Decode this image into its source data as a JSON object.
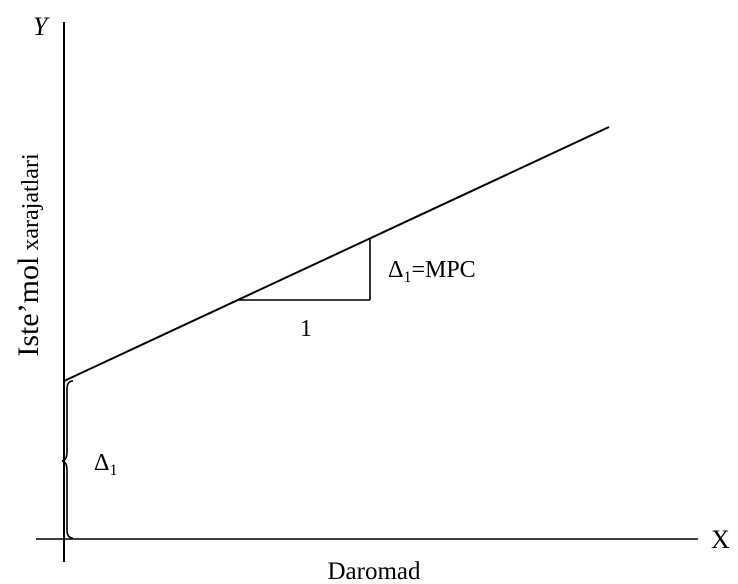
{
  "axes": {
    "y_axis_letter": "Y",
    "x_axis_letter": "X",
    "y_label_main": "Iste’mol",
    "y_label_small": " xarajatlari",
    "x_label": "Daromad"
  },
  "annotations": {
    "intercept_delta": "Δ",
    "intercept_subscript": "1",
    "slope_delta": "Δ",
    "slope_subscript": "1",
    "slope_equals": "=MPC",
    "run_label": "1"
  },
  "colors": {
    "line": "#000000",
    "background": "#ffffff"
  }
}
